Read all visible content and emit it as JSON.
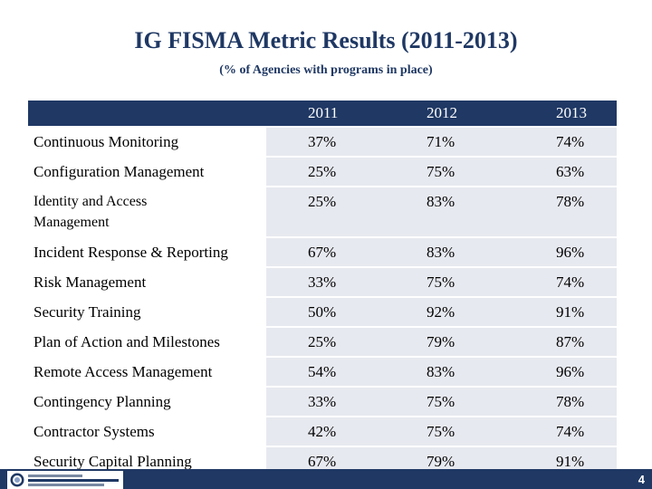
{
  "title": "IG FISMA Metric Results (2011-2013)",
  "subtitle": "(% of Agencies with programs in place)",
  "table": {
    "header": [
      "",
      "2011",
      "2012",
      "2013"
    ],
    "rows": [
      {
        "label": "Continuous Monitoring",
        "values": [
          "37%",
          "71%",
          "74%"
        ]
      },
      {
        "label": "Configuration Management",
        "values": [
          "25%",
          "75%",
          "63%"
        ]
      },
      {
        "label": "Identity and Access Management",
        "values": [
          "25%",
          "83%",
          "78%"
        ]
      },
      {
        "label": "Incident Response & Reporting",
        "values": [
          "67%",
          "83%",
          "96%"
        ]
      },
      {
        "label": "Risk Management",
        "values": [
          "33%",
          "75%",
          "74%"
        ]
      },
      {
        "label": "Security Training",
        "values": [
          "50%",
          "92%",
          "91%"
        ]
      },
      {
        "label": "Plan of Action and Milestones",
        "values": [
          "25%",
          "79%",
          "87%"
        ]
      },
      {
        "label": "Remote Access Management",
        "values": [
          "54%",
          "83%",
          "96%"
        ]
      },
      {
        "label": "Contingency Planning",
        "values": [
          "33%",
          "75%",
          "78%"
        ]
      },
      {
        "label": "Contractor Systems",
        "values": [
          "42%",
          "75%",
          "74%"
        ]
      },
      {
        "label": "Security Capital Planning",
        "values": [
          "67%",
          "79%",
          "91%"
        ]
      }
    ]
  },
  "footer": {
    "logo_icon": "inspectors-general-seal-icon",
    "page_number": "4"
  },
  "colors": {
    "navy": "#1f3864",
    "cell_fill": "#e7e9f0"
  }
}
